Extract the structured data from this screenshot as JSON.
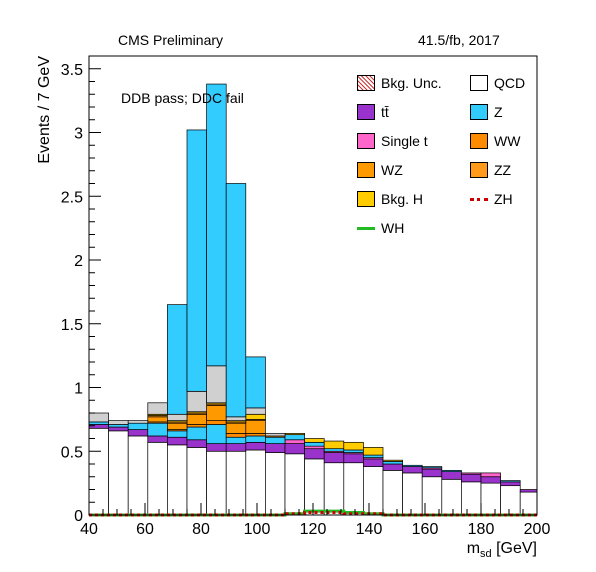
{
  "header": {
    "left": "CMS Preliminary",
    "right": "41.5/fb, 2017"
  },
  "annotation": "DDB pass; DDC fail",
  "chart_data": {
    "type": "area",
    "stacked": true,
    "xlabel": "m_sd [GeV]",
    "xlabel_main": "m",
    "xlabel_sub": "sd",
    "xlabel_unit": " [GeV]",
    "ylabel": "Events / 7 GeV",
    "xlim": [
      40,
      200
    ],
    "ylim": [
      0,
      3.6
    ],
    "x_ticks": [
      40,
      60,
      80,
      100,
      120,
      140,
      160,
      180,
      200
    ],
    "y_ticks": [
      0,
      0.5,
      1,
      1.5,
      2,
      2.5,
      3,
      3.5
    ],
    "y_tick_labels": [
      "0",
      "0.5",
      "1",
      "1.5",
      "2",
      "2.5",
      "3",
      "3.5"
    ],
    "bin_edges": [
      40,
      47,
      54,
      61,
      68,
      75,
      82,
      89,
      96,
      103,
      110,
      117,
      124,
      131,
      138,
      145,
      152,
      159,
      166,
      173,
      180,
      187,
      194,
      201
    ],
    "series": [
      {
        "name": "QCD",
        "color": "#ffffff",
        "values": [
          0.68,
          0.66,
          0.62,
          0.57,
          0.55,
          0.53,
          0.5,
          0.5,
          0.51,
          0.49,
          0.48,
          0.44,
          0.41,
          0.41,
          0.38,
          0.35,
          0.33,
          0.3,
          0.28,
          0.26,
          0.25,
          0.23,
          0.18
        ]
      },
      {
        "name": "tt̄",
        "color": "#9933cc",
        "values": [
          0.03,
          0.03,
          0.05,
          0.05,
          0.06,
          0.06,
          0.06,
          0.06,
          0.06,
          0.07,
          0.08,
          0.08,
          0.08,
          0.07,
          0.06,
          0.05,
          0.05,
          0.06,
          0.06,
          0.06,
          0.05,
          0.03,
          0.02
        ]
      },
      {
        "name": "Single t",
        "color": "#ff66cc",
        "values": [
          0.0,
          0.0,
          0.0,
          0.0,
          0.0,
          0.0,
          0.0,
          0.0,
          0.0,
          0.0,
          0.03,
          0.02,
          0.01,
          0.01,
          0.01,
          0.0,
          0.0,
          0.01,
          0.0,
          0.01,
          0.03,
          0.0,
          0.0
        ]
      },
      {
        "name": "Z",
        "color": "#33ccff",
        "values": [
          0.02,
          0.02,
          0.05,
          0.1,
          0.05,
          0.1,
          0.15,
          0.05,
          0.05,
          0.05,
          0.04,
          0.03,
          0.02,
          0.02,
          0.02,
          0.02,
          0.01,
          0.01,
          0.01,
          0.0,
          0.0,
          0.01,
          0.0
        ]
      },
      {
        "name": "WW",
        "color": "#ff8c00",
        "values": [
          0.0,
          0.0,
          0.0,
          0.01,
          0.01,
          0.02,
          0.03,
          0.03,
          0.02,
          0.01,
          0.0,
          0.0,
          0.0,
          0.0,
          0.0,
          0.0,
          0.0,
          0.0,
          0.0,
          0.0,
          0.0,
          0.0,
          0.0
        ]
      },
      {
        "name": "WZ",
        "color": "#ff9900",
        "values": [
          0.0,
          0.0,
          0.0,
          0.04,
          0.05,
          0.08,
          0.12,
          0.08,
          0.1,
          0.0,
          0.0,
          0.0,
          0.0,
          0.0,
          0.0,
          0.0,
          0.0,
          0.0,
          0.0,
          0.0,
          0.0,
          0.0,
          0.0
        ]
      },
      {
        "name": "ZZ",
        "color": "#ff9a1a",
        "values": [
          0.0,
          0.0,
          0.0,
          0.01,
          0.01,
          0.01,
          0.01,
          0.01,
          0.01,
          0.0,
          0.0,
          0.0,
          0.0,
          0.0,
          0.0,
          0.0,
          0.0,
          0.0,
          0.0,
          0.0,
          0.0,
          0.0,
          0.0
        ]
      },
      {
        "name": "Bkg. H",
        "color": "#ffcc00",
        "values": [
          0.0,
          0.0,
          0.0,
          0.01,
          0.01,
          0.01,
          0.01,
          0.01,
          0.04,
          0.0,
          0.01,
          0.03,
          0.06,
          0.06,
          0.06,
          0.01,
          0.0,
          0.0,
          0.0,
          0.0,
          0.0,
          0.0,
          0.0
        ]
      },
      {
        "name": "QCD",
        "color": "#d0d0d0",
        "values": [
          0.07,
          0.03,
          0.02,
          0.09,
          0.05,
          0.16,
          0.29,
          0.03,
          0.05,
          0.02,
          0.0,
          0.0,
          0.0,
          0.0,
          0.0,
          0.0,
          0.0,
          0.0,
          0.0,
          0.0,
          0.0,
          0.0,
          0.0
        ]
      },
      {
        "name": "Z",
        "color": "#33ccff",
        "values": [
          0.0,
          0.0,
          0.0,
          0.0,
          0.86,
          2.05,
          2.21,
          1.83,
          0.4,
          0.0,
          0.0,
          0.0,
          0.0,
          0.0,
          0.0,
          0.0,
          0.0,
          0.0,
          0.0,
          0.0,
          0.0,
          0.0,
          0.0
        ]
      }
    ],
    "signal_ZH": [
      0.0,
      0.0,
      0.0,
      0.0,
      0.0,
      0.0,
      0.0,
      0.0,
      0.0,
      0.0,
      0.01,
      0.02,
      0.02,
      0.01,
      0.01,
      0.0,
      0.0,
      0.0,
      0.0,
      0.0,
      0.0,
      0.0,
      0.0
    ],
    "signal_WH": [
      0.0,
      0.0,
      0.0,
      0.0,
      0.0,
      0.0,
      0.0,
      0.0,
      0.0,
      0.0,
      0.01,
      0.03,
      0.03,
      0.02,
      0.01,
      0.0,
      0.0,
      0.0,
      0.0,
      0.0,
      0.0,
      0.0,
      0.0
    ],
    "legend": [
      {
        "label": "Bkg. Unc.",
        "style": "hatch",
        "color": "#cc3333"
      },
      {
        "label": "QCD",
        "style": "box",
        "color": "#ffffff"
      },
      {
        "label": "tt̄",
        "style": "box",
        "color": "#9933cc"
      },
      {
        "label": "Z",
        "style": "box",
        "color": "#33ccff"
      },
      {
        "label": "Single t",
        "style": "box",
        "color": "#ff66cc"
      },
      {
        "label": "WW",
        "style": "box",
        "color": "#ff8c00"
      },
      {
        "label": "WZ",
        "style": "box",
        "color": "#ff9900"
      },
      {
        "label": "ZZ",
        "style": "box",
        "color": "#ff9a1a"
      },
      {
        "label": "Bkg. H",
        "style": "box",
        "color": "#ffcc00"
      },
      {
        "label": "ZH",
        "style": "dash",
        "color": "#cc0000"
      },
      {
        "label": "WH",
        "style": "line",
        "color": "#22bb22"
      }
    ]
  }
}
